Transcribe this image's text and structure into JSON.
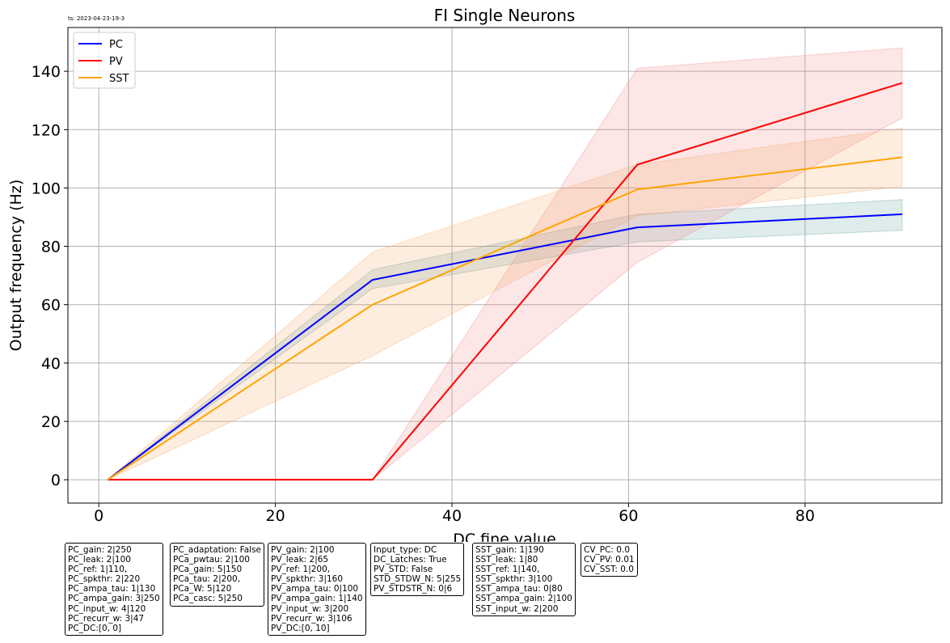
{
  "timestamp": "ts: 2023-04-23-19-3",
  "chart_data": {
    "type": "line",
    "title": "FI Single Neurons",
    "xlabel": "DC fine value",
    "ylabel": "Output frequency (Hz)",
    "xlim": [
      -3.5,
      95.5
    ],
    "ylim": [
      -8,
      155
    ],
    "x_ticks": [
      0,
      20,
      40,
      60,
      80
    ],
    "y_ticks": [
      0,
      20,
      40,
      60,
      80,
      100,
      120,
      140
    ],
    "grid": true,
    "legend_position": "top-left",
    "x": [
      1,
      31,
      61,
      91
    ],
    "series": [
      {
        "name": "PC",
        "color": "#0000ff",
        "band_color": "#5f9ea0",
        "values": [
          0,
          68.5,
          86.5,
          91
        ],
        "lower": [
          0,
          65.5,
          81.5,
          85.5
        ],
        "upper": [
          0,
          72,
          91,
          96
        ]
      },
      {
        "name": "PV",
        "color": "#ff0000",
        "band_color": "#f08080",
        "values": [
          0,
          0,
          108,
          136
        ],
        "lower": [
          0,
          0,
          74.5,
          124
        ],
        "upper": [
          0,
          0,
          141,
          148
        ]
      },
      {
        "name": "SST",
        "color": "#ffa500",
        "band_color": "#f4a460",
        "values": [
          0,
          60,
          99.5,
          110.5
        ],
        "lower": [
          0,
          42.5,
          90.5,
          100.5
        ],
        "upper": [
          0,
          78,
          108,
          120.5
        ]
      }
    ]
  },
  "param_boxes": [
    {
      "lines": [
        "PC_gain: 2|250",
        "PC_leak: 2|100",
        "PC_ref: 1|110,",
        "PC_spkthr: 2|220",
        "PC_ampa_tau: 1|130",
        "PC_ampa_gain: 3|250",
        "PC_input_w: 4|120",
        "PC_recurr_w: 3|47",
        "PC_DC:[0, 0]"
      ]
    },
    {
      "lines": [
        "PC_adaptation: False",
        "PCa_pwtau: 2|100",
        "PCa_gain: 5|150",
        "PCa_tau: 2|200,",
        "PCa_W: 5|120",
        "PCa_casc: 5|250"
      ]
    },
    {
      "lines": [
        "PV_gain: 2|100",
        "PV_leak: 2|65",
        "PV_ref: 1|200,",
        "PV_spkthr: 3|160",
        "PV_ampa_tau: 0|100",
        "PV_ampa_gain: 1|140",
        "PV_input_w: 3|200",
        "PV_recurr_w: 3|106",
        "PV_DC:[0, 10]"
      ]
    },
    {
      "lines": [
        "Input_type: DC",
        "DC_Latches: True",
        "PV_STD: False",
        "STD_STDW_N: 5|255",
        "PV_STDSTR_N: 0|6"
      ]
    },
    {
      "lines": [
        "SST_gain: 1|190",
        "SST_leak: 1|80",
        "SST_ref: 1|140,",
        "SST_spkthr: 3|100",
        "SST_ampa_tau: 0|80",
        "SST_ampa_gain: 2|100",
        "SST_input_w: 2|200"
      ]
    },
    {
      "lines": [
        "CV_PC: 0.0",
        "CV_PV: 0.01",
        "CV_SST: 0.0"
      ]
    }
  ]
}
